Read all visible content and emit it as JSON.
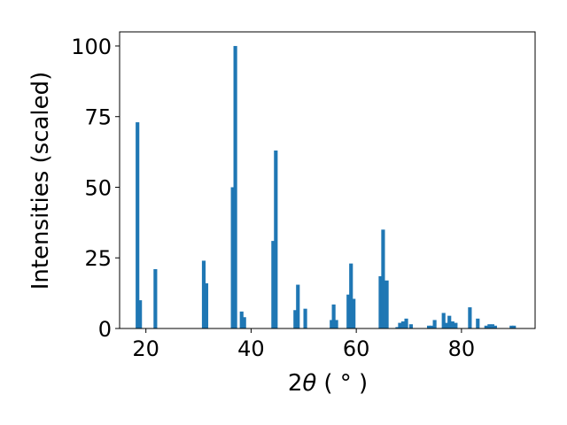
{
  "chart_data": {
    "type": "bar",
    "xlabel_main": "2",
    "xlabel_theta": "θ",
    "xlabel_unit": "( ° )",
    "ylabel": "Intensities (scaled)",
    "xlim": [
      15,
      94
    ],
    "ylim": [
      0,
      105
    ],
    "xticks": [
      20,
      40,
      60,
      80
    ],
    "xtick_labels": [
      "20",
      "40",
      "60",
      "80"
    ],
    "yticks": [
      0,
      25,
      50,
      75,
      100
    ],
    "ytick_labels": [
      "0",
      "25",
      "50",
      "75",
      "100"
    ],
    "bar_width": 0.7,
    "bar_color": "#1f77b4",
    "grid": false,
    "x": [
      18.4,
      18.9,
      21.8,
      31.0,
      31.5,
      36.5,
      37.0,
      38.2,
      38.7,
      44.2,
      44.7,
      48.4,
      48.9,
      50.3,
      55.3,
      55.7,
      56.2,
      58.5,
      59.0,
      59.5,
      64.6,
      65.1,
      65.8,
      67.8,
      68.3,
      68.9,
      69.5,
      70.4,
      73.8,
      74.3,
      74.9,
      76.6,
      77.2,
      77.7,
      78.3,
      78.9,
      81.6,
      83.1,
      84.7,
      85.3,
      85.9,
      86.4,
      89.5,
      90.0
    ],
    "values": [
      73,
      10,
      21,
      24,
      16,
      50,
      100,
      6,
      4,
      31,
      63,
      6.5,
      15.5,
      7,
      3,
      8.5,
      3,
      12,
      23,
      10.5,
      18.5,
      35,
      17,
      0.5,
      2,
      2.5,
      3.5,
      1.5,
      1,
      1,
      3,
      5.5,
      2,
      4.5,
      2.5,
      2,
      7.5,
      3.5,
      1,
      1.5,
      1.5,
      1,
      1,
      1
    ]
  }
}
